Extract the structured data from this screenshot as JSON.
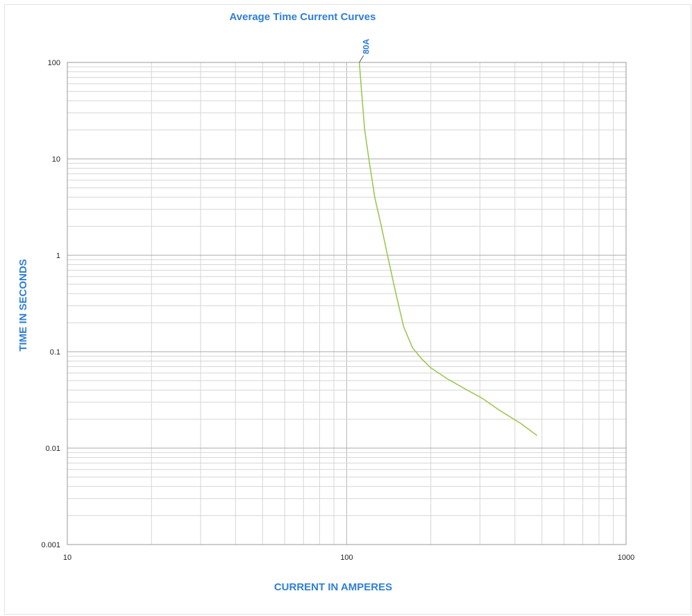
{
  "chart_data": {
    "type": "line",
    "title": "Average Time Current Curves",
    "xlabel": "CURRENT IN AMPERES",
    "ylabel": "TIME IN SECONDS",
    "x_scale": "log",
    "y_scale": "log",
    "xlim": [
      10,
      1000
    ],
    "ylim": [
      0.001,
      100
    ],
    "x_ticks": [
      "10",
      "100",
      "1000"
    ],
    "y_ticks": [
      "100",
      "10",
      "1",
      "0.1",
      "0.01",
      "0.001"
    ],
    "grid": true,
    "series": [
      {
        "name": "80A",
        "color": "#9bc850",
        "points": [
          [
            111,
            100
          ],
          [
            113,
            50
          ],
          [
            116,
            20
          ],
          [
            120,
            10
          ],
          [
            126,
            4
          ],
          [
            133,
            2
          ],
          [
            140,
            1
          ],
          [
            150,
            0.4
          ],
          [
            160,
            0.18
          ],
          [
            172,
            0.11
          ],
          [
            185,
            0.085
          ],
          [
            200,
            0.068
          ],
          [
            230,
            0.052
          ],
          [
            270,
            0.04
          ],
          [
            305,
            0.033
          ],
          [
            350,
            0.025
          ],
          [
            420,
            0.018
          ],
          [
            480,
            0.0135
          ]
        ]
      }
    ]
  }
}
